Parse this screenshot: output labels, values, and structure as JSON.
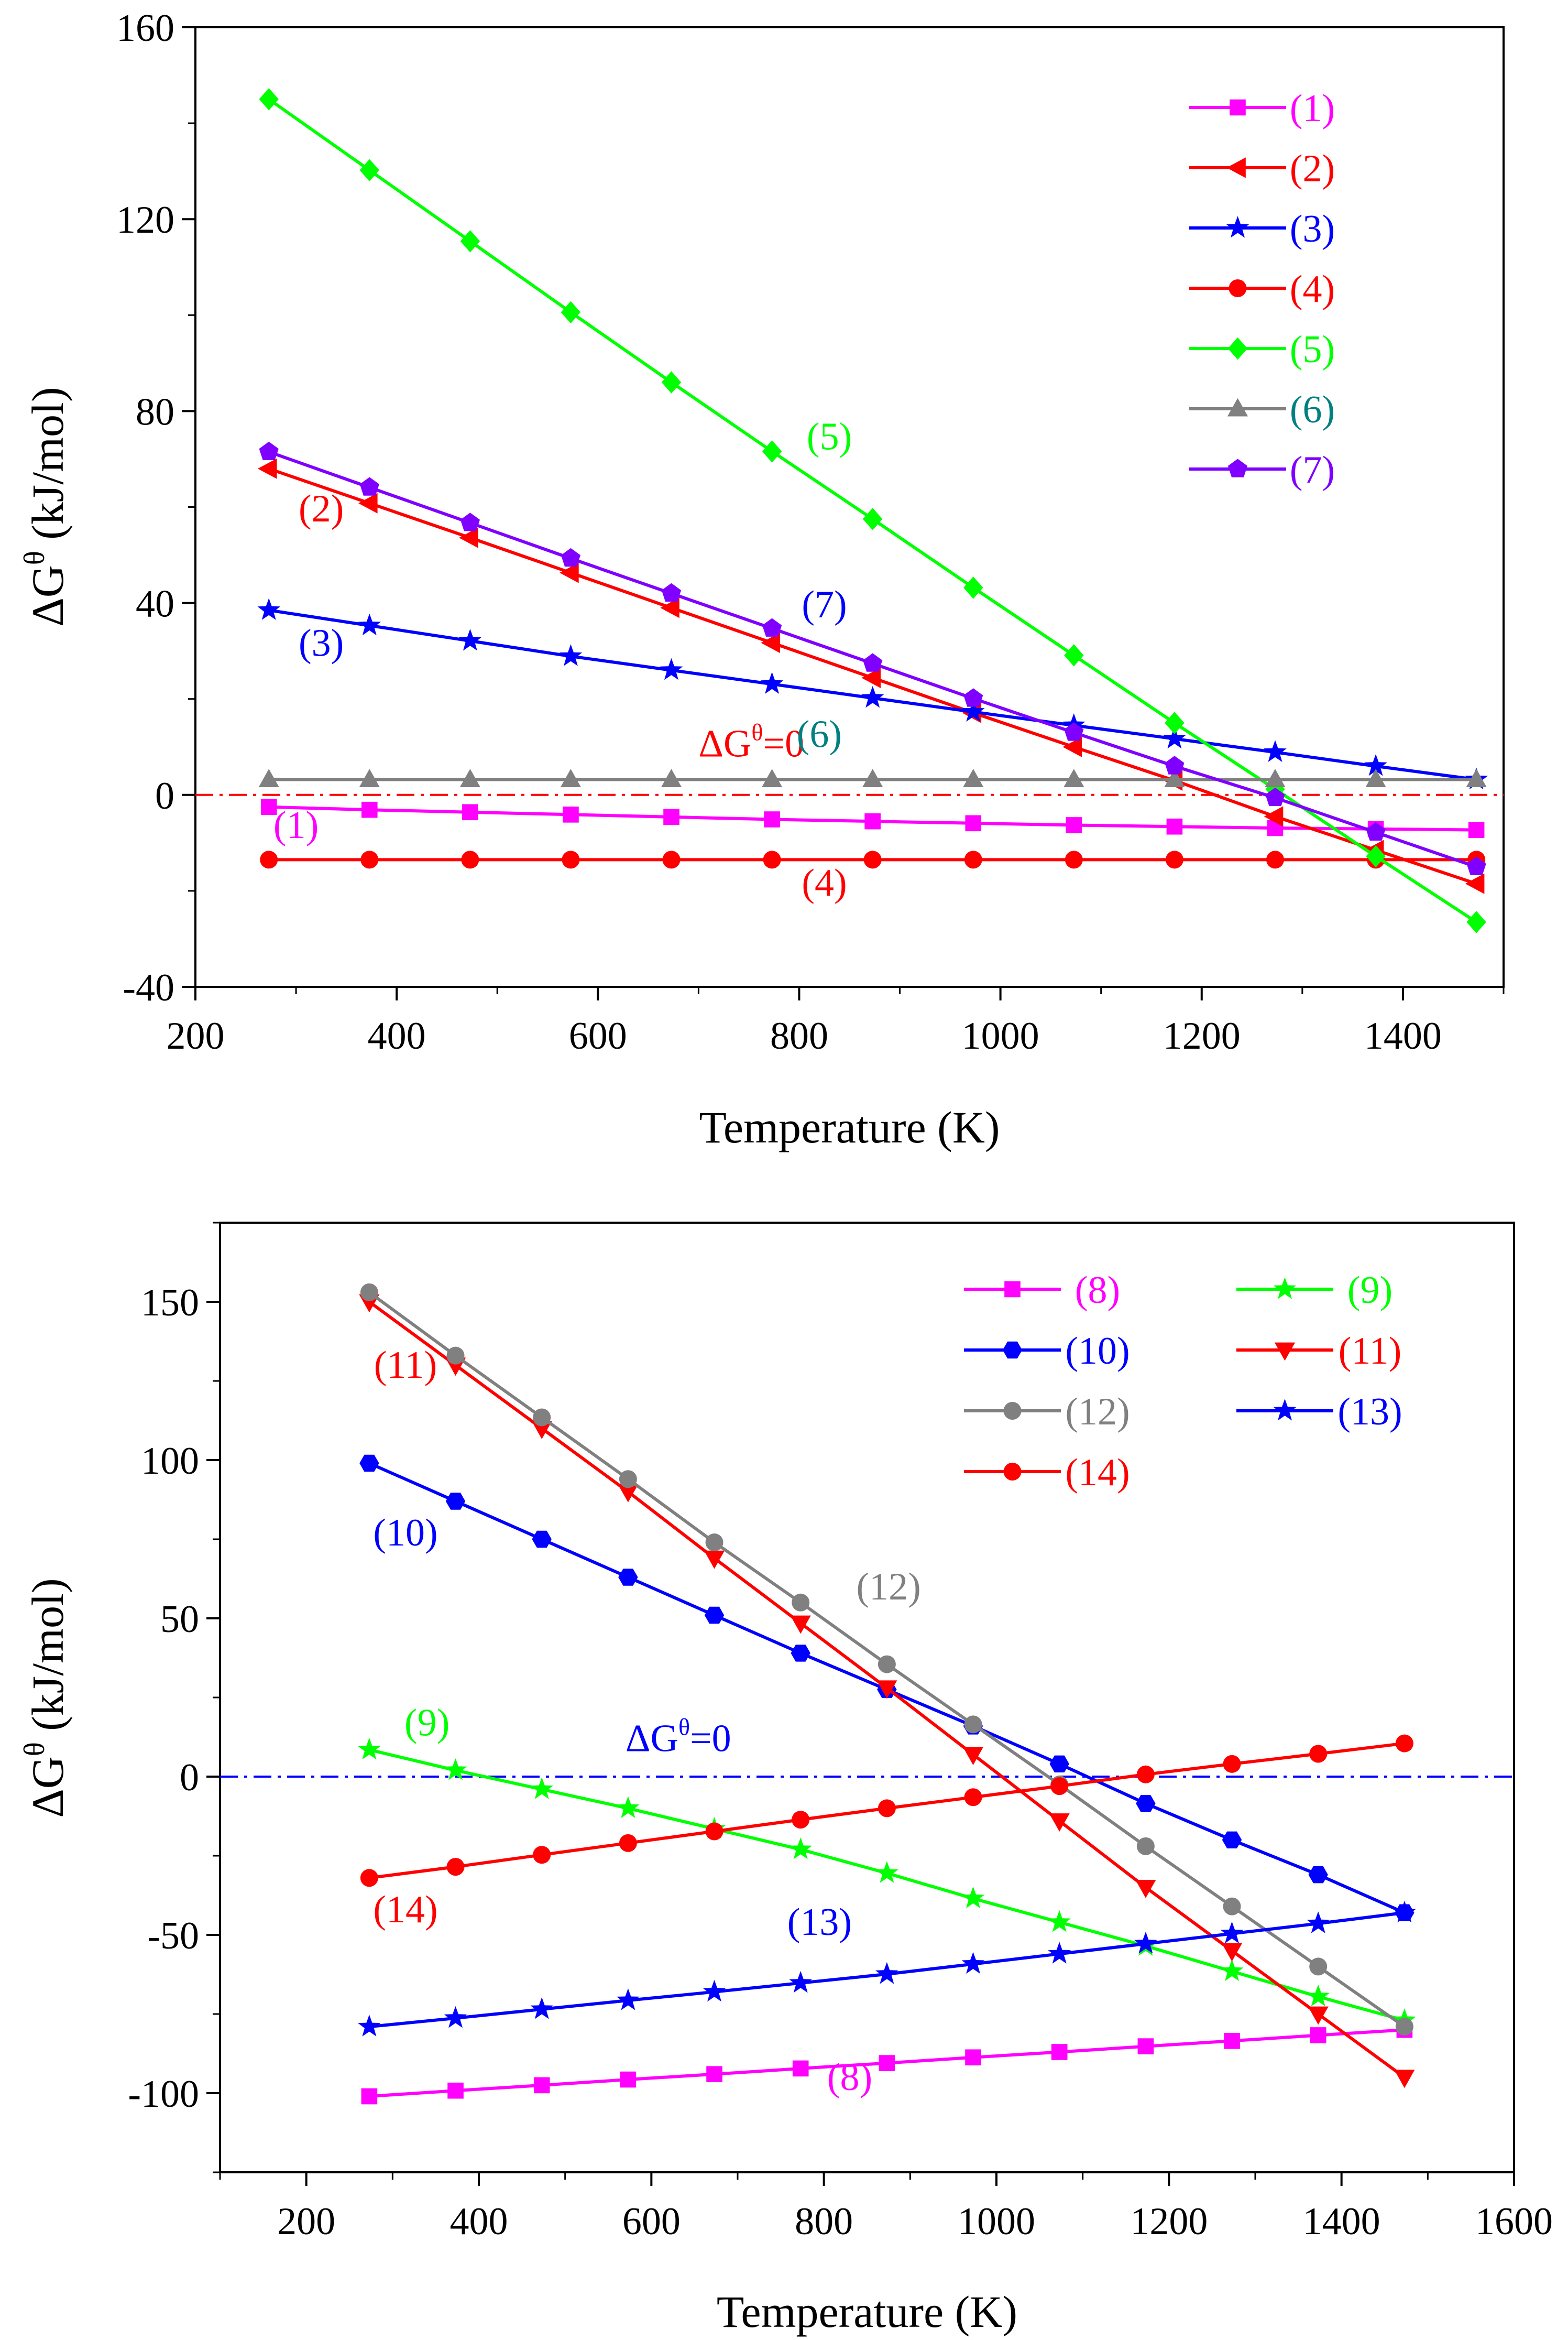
{
  "chart_data": [
    {
      "type": "line",
      "xlabel": "Temperature (K)",
      "ylabel": "ΔG",
      "ylabel_sup": "θ",
      "ylabel_unit": " (kJ/mol)",
      "xlim": [
        200,
        1500
      ],
      "ylim": [
        -40,
        160
      ],
      "xticks": [
        200,
        400,
        600,
        800,
        1000,
        1200,
        1400
      ],
      "yticks": [
        -40,
        0,
        40,
        80,
        120,
        160
      ],
      "xtick_labels": [
        "200",
        "400",
        "600",
        "800",
        "1000",
        "1200",
        "1400"
      ],
      "ytick_labels": [
        "-40",
        "0",
        "40",
        "80",
        "120",
        "160"
      ],
      "x": [
        273,
        373,
        473,
        573,
        673,
        773,
        873,
        973,
        1073,
        1173,
        1273,
        1373,
        1473
      ],
      "reference_line": {
        "y": 0,
        "color": "#ff0000",
        "label": "ΔG",
        "label_sup": "θ",
        "label_tail": "=0",
        "label_x": 700,
        "label_y": 8
      },
      "legend": {
        "location": "top-right",
        "columns": 1
      },
      "series": [
        {
          "name": "(1)",
          "color": "#ff00ff",
          "marker": "square",
          "values": [
            -2.5,
            -3.1,
            -3.6,
            -4.1,
            -4.6,
            -5.1,
            -5.5,
            -5.9,
            -6.3,
            -6.6,
            -6.9,
            -7.1,
            -7.3
          ],
          "label_text": "(1)",
          "label_x": 300,
          "label_y": -9
        },
        {
          "name": "(2)",
          "color": "#ff0000",
          "marker": "triangle-left",
          "values": [
            68,
            60.8,
            53.6,
            46.3,
            39,
            31.7,
            24.4,
            17.1,
            10,
            3,
            -4.5,
            -11.5,
            -18.5
          ],
          "label_text": "(2)",
          "label_x": 325,
          "label_y": 57
        },
        {
          "name": "(3)",
          "color": "#0000ff",
          "marker": "star",
          "values": [
            38.5,
            35.3,
            32.1,
            28.9,
            26,
            23.1,
            20.2,
            17.3,
            14.5,
            11.7,
            8.9,
            6,
            3.2
          ],
          "label_text": "(3)",
          "label_x": 325,
          "label_y": 29
        },
        {
          "name": "(4)",
          "color": "#ff0000",
          "marker": "circle",
          "values": [
            -13.5,
            -13.5,
            -13.5,
            -13.5,
            -13.5,
            -13.5,
            -13.5,
            -13.5,
            -13.5,
            -13.5,
            -13.5,
            -13.5,
            -13.5
          ],
          "label_text": "(4)",
          "label_x": 825,
          "label_y": -21
        },
        {
          "name": "(5)",
          "color": "#00ff00",
          "marker": "diamond",
          "values": [
            145,
            130.2,
            115.4,
            100.6,
            86,
            71.6,
            57.5,
            43.2,
            29.1,
            15,
            1.2,
            -12.8,
            -26.5
          ],
          "label_text": "(5)",
          "label_x": 830,
          "label_y": 72
        },
        {
          "name": "(6)",
          "color": "#808080",
          "marker": "triangle-up",
          "values": [
            3.2,
            3.2,
            3.2,
            3.2,
            3.2,
            3.2,
            3.2,
            3.2,
            3.2,
            3.2,
            3.2,
            3.2,
            3.2
          ],
          "label_text": "(6)",
          "label_x": 820,
          "label_y": 10
        },
        {
          "name": "(7)",
          "color": "#8000ff",
          "marker": "pentagon",
          "values": [
            71.5,
            64.1,
            56.7,
            49.3,
            42,
            34.7,
            27.4,
            20.1,
            13,
            6,
            -0.6,
            -7.8,
            -15
          ],
          "label_text": "(7)",
          "label_x": 825,
          "label_y": 37
        }
      ],
      "legend_text_colors": [
        "#ff00ff",
        "#ff0000",
        "#0000ff",
        "#ff0000",
        "#00ff00",
        "#008080",
        "#8000ff"
      ],
      "label_text_colors": [
        "#ff00ff",
        "#ff0000",
        "#0000ff",
        "#ff0000",
        "#00ff00",
        "#008080",
        "#0000ff"
      ]
    },
    {
      "type": "line",
      "xlabel": "Temperature (K)",
      "ylabel": "ΔG",
      "ylabel_sup": "θ",
      "ylabel_unit": " (kJ/mol)",
      "xlim": [
        100,
        1600
      ],
      "ylim": [
        -125,
        175
      ],
      "xticks": [
        200,
        400,
        600,
        800,
        1000,
        1200,
        1400,
        1600
      ],
      "yticks": [
        -100,
        -50,
        0,
        50,
        100,
        150
      ],
      "xtick_labels": [
        "200",
        "400",
        "600",
        "800",
        "1000",
        "1200",
        "1400",
        "1600"
      ],
      "ytick_labels": [
        "-100",
        "-50",
        "0",
        "50",
        "100",
        "150"
      ],
      "x": [
        273,
        373,
        473,
        573,
        673,
        773,
        873,
        973,
        1073,
        1173,
        1273,
        1373,
        1473
      ],
      "reference_line": {
        "y": 0,
        "color": "#0000ff",
        "label": "ΔG",
        "label_sup": "θ",
        "label_tail": "=0",
        "label_x": 570,
        "label_y": 8
      },
      "legend": {
        "location": "top-right",
        "columns": 2
      },
      "series": [
        {
          "name": "(8)",
          "color": "#ff00ff",
          "marker": "square",
          "values": [
            -101,
            -99.2,
            -97.5,
            -95.7,
            -94,
            -92.2,
            -90.5,
            -88.7,
            -87,
            -85.2,
            -83.5,
            -81.7,
            -80
          ],
          "label_text": "(8)",
          "label_x": 830,
          "label_y": -99
        },
        {
          "name": "(9)",
          "color": "#00ff00",
          "marker": "star",
          "values": [
            8.5,
            2,
            -4,
            -10,
            -16.5,
            -23,
            -30.5,
            -38.5,
            -46,
            -53.5,
            -61.5,
            -69.5,
            -77
          ],
          "label_text": "(9)",
          "label_x": 340,
          "label_y": 13
        },
        {
          "name": "(10)",
          "color": "#0000ff",
          "marker": "hexagon",
          "values": [
            99,
            87,
            75,
            63,
            51,
            39,
            27.5,
            16,
            4,
            -8.5,
            -20,
            -31,
            -43
          ],
          "label_text": "(10)",
          "label_x": 315,
          "label_y": 73
        },
        {
          "name": "(11)",
          "color": "#ff0000",
          "marker": "triangle-down",
          "values": [
            150,
            130,
            110,
            90,
            69,
            48.5,
            28,
            7,
            -14,
            -35,
            -55,
            -75,
            -95
          ],
          "label_text": "(11)",
          "label_x": 315,
          "label_y": 126
        },
        {
          "name": "(12)",
          "color": "#808080",
          "marker": "circle",
          "values": [
            153,
            133,
            113.5,
            94,
            74,
            55,
            35.5,
            16.5,
            -2.5,
            -22,
            -41,
            -60,
            -79
          ],
          "label_text": "(12)",
          "label_x": 875,
          "label_y": 56
        },
        {
          "name": "(13)",
          "color": "#0000ff",
          "marker": "star",
          "values": [
            -79,
            -76.3,
            -73.5,
            -70.7,
            -68,
            -65.2,
            -62.4,
            -59.2,
            -56,
            -52.8,
            -49.6,
            -46.4,
            -43
          ],
          "label_text": "(13)",
          "label_x": 795,
          "label_y": -50
        },
        {
          "name": "(14)",
          "color": "#ff0000",
          "marker": "circle",
          "values": [
            -32,
            -28.5,
            -24.7,
            -21,
            -17.3,
            -13.6,
            -10,
            -6.5,
            -3,
            0.7,
            4,
            7.2,
            10.5
          ],
          "label_text": "(14)",
          "label_x": 315,
          "label_y": -46
        }
      ],
      "legend_text_colors": [
        "#ff00ff",
        "#00ff00",
        "#0000ff",
        "#ff0000",
        "#808080",
        "#0000ff",
        "#ff0000"
      ],
      "label_text_colors": [
        "#ff00ff",
        "#00ff00",
        "#0000ff",
        "#ff0000",
        "#808080",
        "#0000ff",
        "#ff0000"
      ]
    }
  ]
}
